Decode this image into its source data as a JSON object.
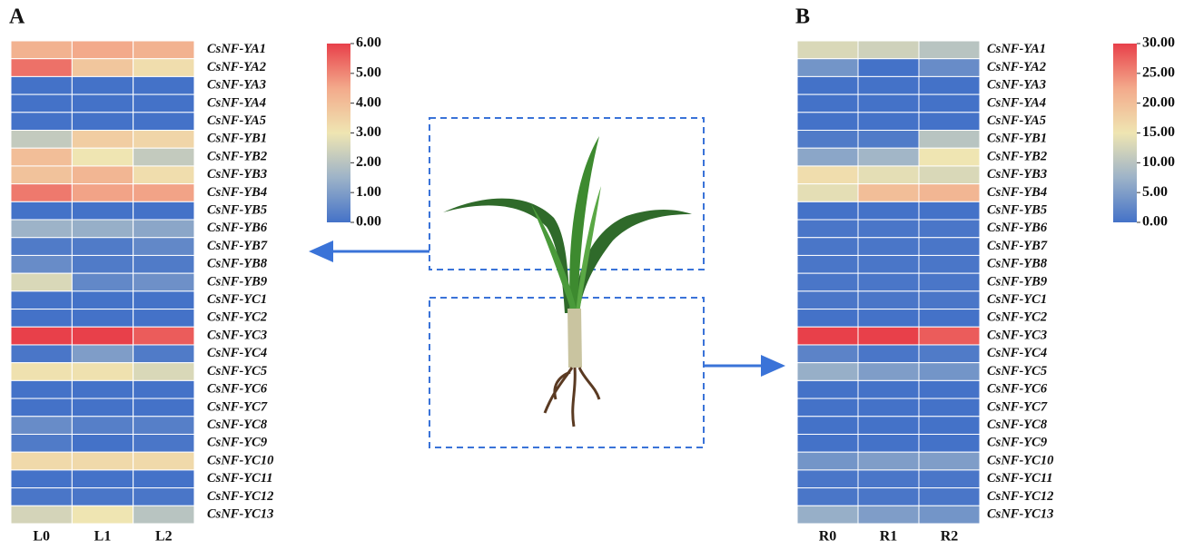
{
  "chart_data": [
    {
      "type": "heatmap",
      "title": "A",
      "x_categories": [
        "L0",
        "L1",
        "L2"
      ],
      "y_categories": [
        "CsNF-YA1",
        "CsNF-YA2",
        "CsNF-YA3",
        "CsNF-YA4",
        "CsNF-YA5",
        "CsNF-YB1",
        "CsNF-YB2",
        "CsNF-YB3",
        "CsNF-YB4",
        "CsNF-YB5",
        "CsNF-YB6",
        "CsNF-YB7",
        "CsNF-YB8",
        "CsNF-YB9",
        "CsNF-YC1",
        "CsNF-YC2",
        "CsNF-YC3",
        "CsNF-YC4",
        "CsNF-YC5",
        "CsNF-YC6",
        "CsNF-YC7",
        "CsNF-YC8",
        "CsNF-YC9",
        "CsNF-YC10",
        "CsNF-YC11",
        "CsNF-YC12",
        "CsNF-YC13"
      ],
      "values": [
        [
          4.3,
          4.5,
          4.3
        ],
        [
          5.3,
          3.8,
          3.2
        ],
        [
          0,
          0,
          0
        ],
        [
          0,
          0,
          0
        ],
        [
          0,
          0,
          0
        ],
        [
          2.2,
          3.6,
          3.4
        ],
        [
          4.0,
          3.0,
          2.2
        ],
        [
          3.9,
          4.2,
          3.2
        ],
        [
          5.2,
          4.6,
          4.6
        ],
        [
          0,
          0,
          0
        ],
        [
          1.5,
          1.4,
          1.2
        ],
        [
          0.2,
          0.2,
          0.5
        ],
        [
          0.6,
          0.2,
          0.2
        ],
        [
          2.6,
          0.5,
          0.7
        ],
        [
          0,
          0,
          0
        ],
        [
          0,
          0,
          0
        ],
        [
          6.0,
          6.0,
          5.6
        ],
        [
          0.1,
          1.0,
          0.2
        ],
        [
          3.1,
          3.1,
          2.6
        ],
        [
          0,
          0,
          0
        ],
        [
          0,
          0,
          0
        ],
        [
          0.6,
          0.3,
          0.3
        ],
        [
          0.2,
          0,
          0.1
        ],
        [
          3.3,
          3.3,
          3.3
        ],
        [
          0,
          0,
          0
        ],
        [
          0.1,
          0.1,
          0.1
        ],
        [
          2.5,
          3.0,
          2.0
        ]
      ],
      "colors": [
        "#4472c8",
        "#9db3c8",
        "#efe5b2",
        "#f3aa8b",
        "#e8404a"
      ],
      "zlim": [
        0,
        6
      ],
      "zticks": [
        {
          "value": 0,
          "label": "0.00"
        },
        {
          "value": 1,
          "label": "1.00"
        },
        {
          "value": 2,
          "label": "2.00"
        },
        {
          "value": 3,
          "label": "3.00"
        },
        {
          "value": 4,
          "label": "4.00"
        },
        {
          "value": 5,
          "label": "5.00"
        },
        {
          "value": 6,
          "label": "6.00"
        }
      ]
    },
    {
      "type": "heatmap",
      "title": "B",
      "x_categories": [
        "R0",
        "R1",
        "R2"
      ],
      "y_categories": [
        "CsNF-YA1",
        "CsNF-YA2",
        "CsNF-YA3",
        "CsNF-YA4",
        "CsNF-YA5",
        "CsNF-YB1",
        "CsNF-YB2",
        "CsNF-YB3",
        "CsNF-YB4",
        "CsNF-YB5",
        "CsNF-YB6",
        "CsNF-YB7",
        "CsNF-YB8",
        "CsNF-YB9",
        "CsNF-YC1",
        "CsNF-YC2",
        "CsNF-YC3",
        "CsNF-YC4",
        "CsNF-YC5",
        "CsNF-YC6",
        "CsNF-YC7",
        "CsNF-YC8",
        "CsNF-YC9",
        "CsNF-YC10",
        "CsNF-YC11",
        "CsNF-YC12",
        "CsNF-YC13"
      ],
      "values": [
        [
          13,
          12,
          10
        ],
        [
          4,
          0,
          3
        ],
        [
          0,
          0,
          0
        ],
        [
          0,
          0,
          0
        ],
        [
          0,
          0,
          0
        ],
        [
          1,
          1,
          10
        ],
        [
          6,
          8,
          15
        ],
        [
          16,
          14,
          13
        ],
        [
          14,
          20,
          21
        ],
        [
          0,
          0,
          0
        ],
        [
          0.5,
          0.5,
          0.5
        ],
        [
          0.5,
          0.5,
          0.5
        ],
        [
          0.5,
          0.5,
          0.5
        ],
        [
          0.5,
          0.5,
          0.5
        ],
        [
          0.5,
          0.5,
          0.5
        ],
        [
          0,
          0,
          0
        ],
        [
          30,
          30,
          28
        ],
        [
          2,
          0.5,
          1
        ],
        [
          7,
          5,
          4
        ],
        [
          0,
          0,
          0
        ],
        [
          0,
          0,
          0
        ],
        [
          0,
          0,
          0
        ],
        [
          0,
          0,
          0
        ],
        [
          4,
          5,
          5
        ],
        [
          0.5,
          0.5,
          0.5
        ],
        [
          0.5,
          0.5,
          0.5
        ],
        [
          7,
          5,
          4
        ]
      ],
      "colors": [
        "#4472c8",
        "#9db3c8",
        "#efe5b2",
        "#f3aa8b",
        "#e8404a"
      ],
      "zlim": [
        0,
        30
      ],
      "zticks": [
        {
          "value": 0,
          "label": "0.00"
        },
        {
          "value": 5,
          "label": "5.00"
        },
        {
          "value": 10,
          "label": "10.00"
        },
        {
          "value": 15,
          "label": "15.00"
        },
        {
          "value": 20,
          "label": "20.00"
        },
        {
          "value": 25,
          "label": "25.00"
        },
        {
          "value": 30,
          "label": "30.00"
        }
      ]
    }
  ]
}
